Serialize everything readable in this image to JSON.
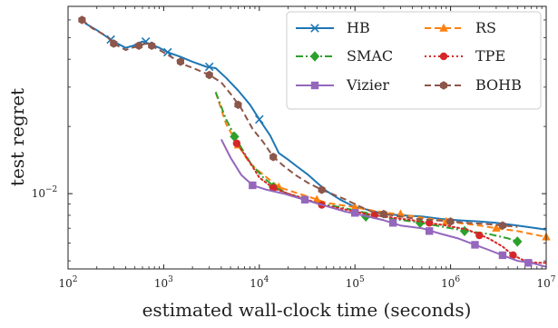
{
  "chart_data": {
    "type": "line",
    "xlabel": "estimated wall-clock time (seconds)",
    "ylabel": "test regret",
    "xscale": "log",
    "yscale": "log",
    "xlim": [
      100,
      10000000
    ],
    "ylim": [
      0.0046,
      0.069
    ],
    "x_ticks": [
      {
        "value": 100,
        "base": "10",
        "exp": "2"
      },
      {
        "value": 1000,
        "base": "10",
        "exp": "3"
      },
      {
        "value": 10000,
        "base": "10",
        "exp": "4"
      },
      {
        "value": 100000,
        "base": "10",
        "exp": "5"
      },
      {
        "value": 1000000,
        "base": "10",
        "exp": "6"
      },
      {
        "value": 10000000,
        "base": "10",
        "exp": "7"
      }
    ],
    "y_ticks": [
      {
        "value": 0.01,
        "base": "10",
        "exp": "−2"
      }
    ],
    "grid": false,
    "legend": {
      "position": "top-right",
      "columns": 2
    },
    "series": [
      {
        "name": "HB",
        "color": "#1f77b4",
        "linestyle": "solid",
        "marker": "x",
        "x": [
          150,
          200,
          300,
          400,
          480,
          600,
          700,
          900,
          1100,
          1500,
          2000,
          2800,
          3500,
          4500,
          6000,
          8000,
          10000,
          13000,
          16000,
          20000,
          25000,
          32000,
          40000,
          50000,
          70000,
          100000,
          150000,
          200000,
          300000,
          500000,
          800000,
          1200000,
          2000000,
          3000000,
          5000000,
          8000000,
          10000000
        ],
        "y": [
          0.058,
          0.054,
          0.048,
          0.045,
          0.046,
          0.048,
          0.047,
          0.045,
          0.043,
          0.041,
          0.039,
          0.037,
          0.0365,
          0.033,
          0.029,
          0.025,
          0.0215,
          0.0182,
          0.0152,
          0.0142,
          0.0132,
          0.0122,
          0.0112,
          0.0103,
          0.0094,
          0.0087,
          0.0084,
          0.0081,
          0.008,
          0.0079,
          0.0077,
          0.0076,
          0.0075,
          0.0074,
          0.0072,
          0.007,
          0.0069
        ],
        "markers_x": [
          280,
          650,
          1100,
          3000,
          10000
        ],
        "markers_y": [
          0.049,
          0.048,
          0.043,
          0.037,
          0.0215
        ]
      },
      {
        "name": "RS",
        "color": "#ff7f0e",
        "linestyle": "dashed",
        "marker": "triangle",
        "x": [
          3500,
          4500,
          6000,
          8000,
          12000,
          16000,
          24000,
          35000,
          50000,
          70000,
          100000,
          150000,
          220000,
          350000,
          500000,
          800000,
          1200000,
          2000000,
          3000000,
          5000000,
          7000000,
          10000000
        ],
        "y": [
          0.0285,
          0.0205,
          0.0165,
          0.0136,
          0.0118,
          0.0107,
          0.0101,
          0.0096,
          0.0091,
          0.0089,
          0.0087,
          0.0084,
          0.0082,
          0.008,
          0.0078,
          0.0076,
          0.0074,
          0.0072,
          0.007,
          0.0068,
          0.0066,
          0.0064
        ],
        "markers_x": [
          6000,
          16000,
          40000,
          100000,
          300000,
          900000,
          3000000,
          10000000
        ],
        "markers_y": [
          0.0165,
          0.0107,
          0.0094,
          0.0087,
          0.0081,
          0.0075,
          0.007,
          0.0064
        ]
      },
      {
        "name": "SMAC",
        "color": "#2ca02c",
        "linestyle": "dashdot",
        "marker": "diamond",
        "x": [
          3500,
          4500,
          6000,
          8000,
          11000,
          15000,
          20000,
          30000,
          45000,
          70000,
          100000,
          150000,
          250000,
          400000,
          700000,
          1000000,
          1500000,
          2500000,
          4000000,
          5000000
        ],
        "y": [
          0.0285,
          0.0215,
          0.017,
          0.0138,
          0.0118,
          0.0106,
          0.01,
          0.0094,
          0.009,
          0.0087,
          0.0084,
          0.0081,
          0.0077,
          0.0075,
          0.0072,
          0.007,
          0.0068,
          0.0066,
          0.0063,
          0.0061
        ],
        "markers_x": [
          5500,
          14000,
          130000,
          480000,
          1400000,
          5000000
        ],
        "markers_y": [
          0.018,
          0.0107,
          0.0079,
          0.0074,
          0.0068,
          0.0061
        ]
      },
      {
        "name": "TPE",
        "color": "#d62728",
        "linestyle": "dotted",
        "marker": "circle",
        "x": [
          6000,
          8000,
          10000,
          14000,
          20000,
          30000,
          45000,
          70000,
          100000,
          160000,
          250000,
          400000,
          600000,
          900000,
          1500000,
          2500000,
          3500000,
          4500000,
          6000000,
          8000000,
          10000000
        ],
        "y": [
          0.0165,
          0.0138,
          0.0118,
          0.0106,
          0.01,
          0.0095,
          0.0089,
          0.0086,
          0.0083,
          0.008,
          0.0078,
          0.0076,
          0.0074,
          0.0072,
          0.0069,
          0.0063,
          0.0058,
          0.0053,
          0.005,
          0.0049,
          0.0049
        ],
        "markers_x": [
          5800,
          14000,
          45000,
          160000,
          600000,
          2000000,
          4500000
        ],
        "markers_y": [
          0.0168,
          0.0106,
          0.0089,
          0.008,
          0.0074,
          0.0065,
          0.0053
        ]
      },
      {
        "name": "Vizier",
        "color": "#9467bd",
        "linestyle": "solid",
        "marker": "square",
        "x": [
          4000,
          5000,
          6500,
          8500,
          12000,
          18000,
          25000,
          35000,
          50000,
          80000,
          120000,
          200000,
          300000,
          500000,
          800000,
          1200000,
          1800000,
          2500000,
          3500000,
          5000000,
          7000000,
          10000000
        ],
        "y": [
          0.0175,
          0.0145,
          0.0121,
          0.0109,
          0.0104,
          0.01,
          0.0096,
          0.0092,
          0.0088,
          0.0083,
          0.008,
          0.0076,
          0.0072,
          0.007,
          0.0066,
          0.0063,
          0.0059,
          0.0056,
          0.0053,
          0.005,
          0.0049,
          0.0047
        ],
        "markers_x": [
          8500,
          30000,
          100000,
          250000,
          600000,
          1800000,
          3500000,
          6500000
        ],
        "markers_y": [
          0.0109,
          0.0094,
          0.0082,
          0.0074,
          0.0068,
          0.0059,
          0.0053,
          0.0049
        ]
      },
      {
        "name": "BOHB",
        "color": "#8c564b",
        "linestyle": "dashed",
        "marker": "hexagon",
        "x": [
          140,
          180,
          250,
          300,
          400,
          470,
          550,
          650,
          750,
          900,
          1200,
          1600,
          2200,
          3000,
          4000,
          5000,
          6500,
          8500,
          11000,
          14000,
          18000,
          24000,
          32000,
          45000,
          60000,
          80000,
          110000,
          150000,
          200000,
          300000,
          450000,
          700000,
          1000000,
          1500000,
          2500000,
          3500000,
          5000000
        ],
        "y": [
          0.06,
          0.055,
          0.051,
          0.047,
          0.044,
          0.045,
          0.046,
          0.047,
          0.046,
          0.044,
          0.041,
          0.038,
          0.036,
          0.034,
          0.0315,
          0.028,
          0.024,
          0.0195,
          0.017,
          0.0146,
          0.0133,
          0.0121,
          0.0112,
          0.0104,
          0.0099,
          0.0094,
          0.0088,
          0.0083,
          0.0081,
          0.0079,
          0.0077,
          0.0076,
          0.0075,
          0.0074,
          0.0073,
          0.0072,
          0.0071
        ],
        "markers_x": [
          140,
          300,
          550,
          750,
          1500,
          3000,
          6000,
          14000,
          45000,
          200000,
          1000000,
          3500000
        ],
        "markers_y": [
          0.06,
          0.047,
          0.046,
          0.046,
          0.039,
          0.034,
          0.025,
          0.0146,
          0.0104,
          0.0081,
          0.0075,
          0.0072
        ]
      }
    ]
  }
}
